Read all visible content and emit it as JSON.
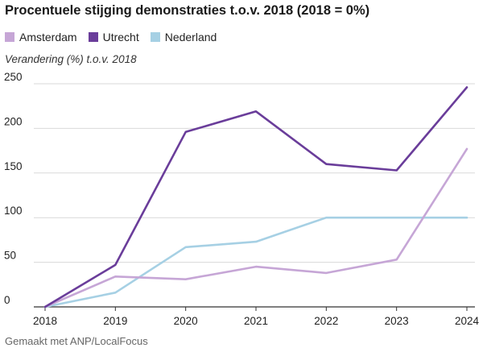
{
  "chart_data": {
    "type": "line",
    "title": "Procentuele stijging demonstraties t.o.v. 2018 (2018 = 0%)",
    "ylabel": "Verandering (%) t.o.v. 2018",
    "xlabel": "",
    "categories": [
      "2018",
      "2019",
      "2020",
      "2021",
      "2022",
      "2023",
      "2024"
    ],
    "ylim": [
      0,
      250
    ],
    "yticks": [
      0,
      50,
      100,
      150,
      200,
      250
    ],
    "series": [
      {
        "name": "Amsterdam",
        "color": "#c6a6d6",
        "values": [
          0,
          34,
          31,
          45,
          38,
          53,
          177
        ]
      },
      {
        "name": "Utrecht",
        "color": "#6a3d9a",
        "values": [
          0,
          47,
          196,
          219,
          160,
          153,
          246
        ]
      },
      {
        "name": "Nederland",
        "color": "#a6d0e4",
        "values": [
          0,
          16,
          67,
          73,
          100,
          100,
          100
        ]
      }
    ],
    "credit": "Gemaakt met ANP/LocalFocus"
  }
}
